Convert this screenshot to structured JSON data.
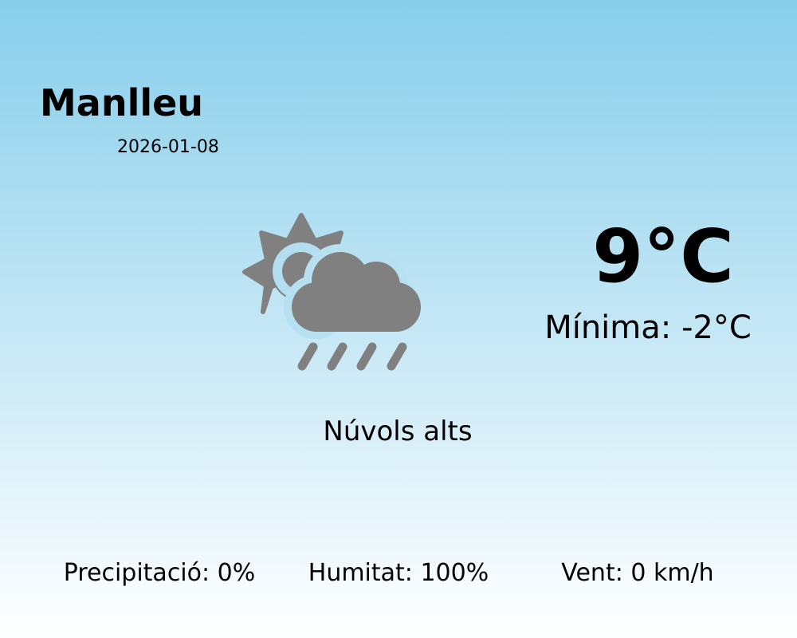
{
  "location": {
    "city": "Manlleu",
    "date": "2026-01-08"
  },
  "current": {
    "temperature": "9°C",
    "minimum": "Mínima: -2°C",
    "condition": "Núvols alts",
    "icon": "partly-cloudy-rain-icon"
  },
  "stats": {
    "precipitation": "Precipitació: 0%",
    "humidity": "Humitat: 100%",
    "wind": "Vent: 0 km/h"
  },
  "colors": {
    "background_top": "#87CEEB",
    "background_bottom": "#ffffff",
    "icon": "#808080"
  }
}
